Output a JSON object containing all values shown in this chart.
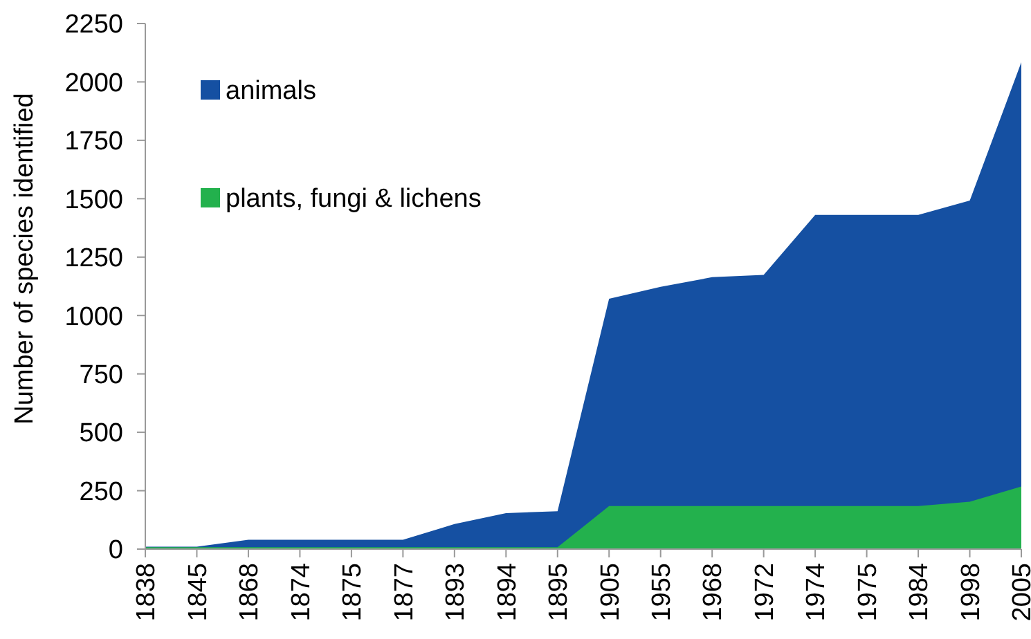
{
  "chart_data": {
    "type": "area",
    "ylabel": "Number of species identified",
    "categories": [
      "1838",
      "1845",
      "1868",
      "1874",
      "1875",
      "1877",
      "1893",
      "1894",
      "1895",
      "1905",
      "1955",
      "1968",
      "1972",
      "1974",
      "1975",
      "1984",
      "1998",
      "2005"
    ],
    "series": [
      {
        "name": "animals",
        "color": "#1550a2",
        "values": [
          10,
          10,
          40,
          40,
          40,
          40,
          107,
          154,
          162,
          1072,
          1123,
          1164,
          1174,
          1431,
          1431,
          1431,
          1492,
          2084
        ]
      },
      {
        "name": "plants, fungi & lichens",
        "color": "#23b14d",
        "values": [
          8,
          8,
          8,
          8,
          8,
          8,
          8,
          8,
          8,
          184,
          184,
          184,
          184,
          184,
          184,
          184,
          203,
          268
        ]
      }
    ],
    "ylim": [
      0,
      2250
    ],
    "yticks": [
      0,
      250,
      500,
      750,
      1000,
      1250,
      1500,
      1750,
      2000,
      2250
    ],
    "grid": false,
    "legend": "top left"
  }
}
